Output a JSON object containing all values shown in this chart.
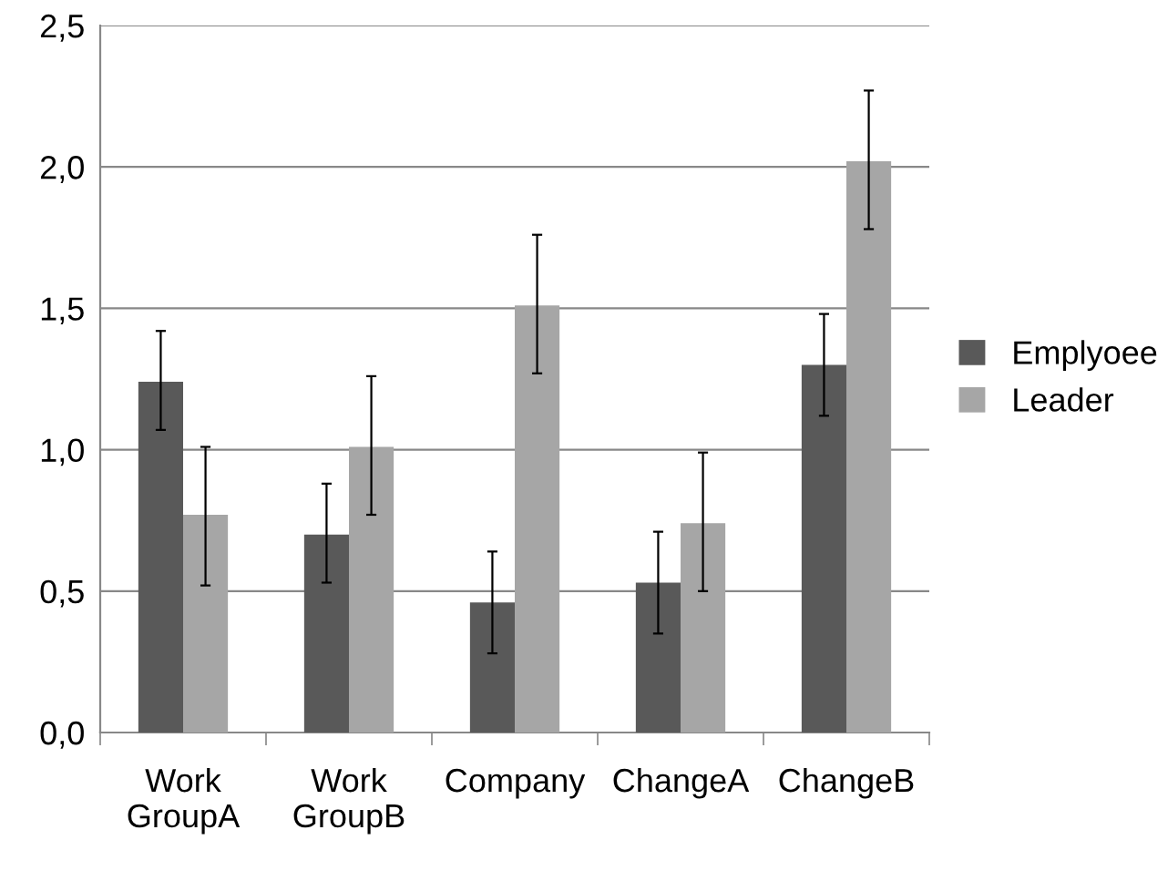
{
  "chart_data": {
    "type": "bar",
    "categories": [
      "Work\nGroupA",
      "Work\nGroupB",
      "Company",
      "ChangeA",
      "ChangeB"
    ],
    "series": [
      {
        "name": "Emplyoee",
        "color": "#595959",
        "values": [
          1.24,
          0.7,
          0.46,
          0.53,
          1.3
        ],
        "errors": [
          [
            1.07,
            1.42
          ],
          [
            0.53,
            0.88
          ],
          [
            0.28,
            0.64
          ],
          [
            0.35,
            0.71
          ],
          [
            1.12,
            1.48
          ]
        ]
      },
      {
        "name": "Leader",
        "color": "#a6a6a6",
        "values": [
          0.77,
          1.01,
          1.51,
          0.74,
          2.02
        ],
        "errors": [
          [
            0.52,
            1.01
          ],
          [
            0.77,
            1.26
          ],
          [
            1.27,
            1.76
          ],
          [
            0.5,
            0.99
          ],
          [
            1.78,
            2.27
          ]
        ]
      }
    ],
    "ylim": [
      0,
      2.5
    ],
    "yticks": [
      {
        "value": 0,
        "label": "0,0"
      },
      {
        "value": 0.5,
        "label": "0,5"
      },
      {
        "value": 1.0,
        "label": "1,0"
      },
      {
        "value": 1.5,
        "label": "1,5"
      },
      {
        "value": 2.0,
        "label": "2,0"
      },
      {
        "value": 2.5,
        "label": "2,5"
      }
    ],
    "grid": "y",
    "legend": "right"
  }
}
